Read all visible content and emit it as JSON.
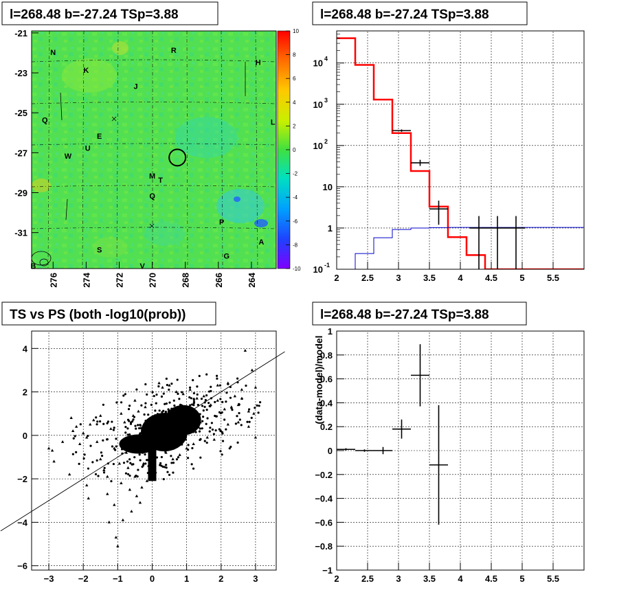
{
  "panels": {
    "skymap": {
      "title": "l=268.48 b=-27.24 TSp=3.88"
    },
    "spectrum": {
      "title": "l=268.48 b=-27.24 TSp=3.88"
    },
    "scatter": {
      "title": "TS vs PS (both -log10(prob))"
    },
    "residual": {
      "title": "l=268.48 b=-27.24 TSp=3.88"
    }
  },
  "chart_data": [
    {
      "type": "heatmap",
      "title": "l=268.48 b=-27.24 TSp=3.88",
      "x_ticks": [
        "276",
        "274",
        "272",
        "270",
        "268",
        "266",
        "264"
      ],
      "y_ticks": [
        "-21",
        "-23",
        "-25",
        "-27",
        "-29",
        "-31"
      ],
      "xlim": [
        277.3,
        262.5
      ],
      "ylim": [
        -32.8,
        -20.9
      ],
      "colorbar": {
        "ticks": [
          "10",
          "8",
          "6",
          "4",
          "2",
          "0",
          "-2",
          "-4",
          "-6",
          "-8",
          "-10"
        ],
        "range": [
          -10,
          10
        ]
      },
      "labels": [
        {
          "text": "N",
          "l": 276.0,
          "b": -22.1
        },
        {
          "text": "K",
          "l": 274.0,
          "b": -23.0
        },
        {
          "text": "R",
          "l": 268.7,
          "b": -22.0
        },
        {
          "text": "H",
          "l": 263.6,
          "b": -22.6
        },
        {
          "text": "J",
          "l": 271.0,
          "b": -23.8
        },
        {
          "text": "Q",
          "l": 276.5,
          "b": -25.5
        },
        {
          "text": "E",
          "l": 273.2,
          "b": -26.3
        },
        {
          "text": "L",
          "l": 262.7,
          "b": -25.6
        },
        {
          "text": "U",
          "l": 273.9,
          "b": -26.9
        },
        {
          "text": "W",
          "l": 275.1,
          "b": -27.3
        },
        {
          "text": "M",
          "l": 270.0,
          "b": -28.3
        },
        {
          "text": "T",
          "l": 269.5,
          "b": -28.5
        },
        {
          "text": "Q",
          "l": 270.0,
          "b": -29.3
        },
        {
          "text": "P",
          "l": 265.8,
          "b": -30.6
        },
        {
          "text": "A",
          "l": 263.4,
          "b": -31.6
        },
        {
          "text": "S",
          "l": 273.2,
          "b": -32.0
        },
        {
          "text": "G",
          "l": 265.5,
          "b": -32.3
        },
        {
          "text": "V",
          "l": 270.6,
          "b": -32.8
        },
        {
          "text": "B",
          "l": 277.2,
          "b": -32.8
        }
      ],
      "circle": {
        "l": 268.48,
        "b": -27.24
      }
    },
    {
      "type": "line",
      "title": "l=268.48 b=-27.24 TSp=3.88",
      "xlim": [
        2,
        6
      ],
      "ylim": [
        0.1,
        60000
      ],
      "yscale": "log",
      "x_ticks": [
        "2",
        "2.5",
        "3",
        "3.5",
        "4",
        "4.5",
        "5",
        "5.5"
      ],
      "y_ticks": [
        "10^-1",
        "1",
        "10",
        "10^2",
        "10^3",
        "10^4"
      ],
      "grid": true,
      "series": [
        {
          "style": "step",
          "color": "#ff0000",
          "edges": [
            2.0,
            2.3,
            2.6,
            2.9,
            3.2,
            3.5,
            3.8,
            4.1,
            4.4,
            6.0
          ],
          "values": [
            40000,
            9000,
            1300,
            200,
            24,
            3.3,
            0.6,
            0.22,
            0.1
          ]
        },
        {
          "style": "step",
          "color": "#0000cc",
          "edges": [
            2.0,
            2.3,
            2.6,
            2.9,
            3.2,
            3.5,
            3.8,
            6.0
          ],
          "values": [
            0.1,
            0.24,
            0.58,
            0.92,
            1.0,
            1.02,
            1.03
          ]
        },
        {
          "style": "errorbar",
          "color": "#000000",
          "points": [
            {
              "x": 3.05,
              "y": 230,
              "xerr": 0.15,
              "ylo": 215,
              "yhi": 245
            },
            {
              "x": 3.35,
              "y": 38,
              "xerr": 0.15,
              "ylo": 32,
              "yhi": 45
            },
            {
              "x": 3.65,
              "y": 2.9,
              "xerr": 0.15,
              "ylo": 1.2,
              "yhi": 4.6
            },
            {
              "x": 4.3,
              "y": 1.0,
              "xerr": 0.15,
              "ylo": 0.1,
              "yhi": 1.95
            },
            {
              "x": 4.6,
              "y": 1.0,
              "xerr": 0.15,
              "ylo": 0.1,
              "yhi": 1.95
            },
            {
              "x": 4.9,
              "y": 1.0,
              "xerr": 0.15,
              "ylo": 0.1,
              "yhi": 1.95
            }
          ]
        }
      ]
    },
    {
      "type": "scatter",
      "title": "TS vs PS (both -log10(prob))",
      "xlim": [
        -3.5,
        3.6
      ],
      "ylim": [
        -6.2,
        4.8
      ],
      "x_ticks": [
        "−3",
        "−2",
        "−1",
        "0",
        "1",
        "2",
        "3"
      ],
      "y_ticks": [
        "−6",
        "−4",
        "−2",
        "0",
        "2",
        "4"
      ],
      "grid": true,
      "reference_line": {
        "slope": 1,
        "intercept": 0
      },
      "points": [
        [
          -2.9,
          -0.7
        ],
        [
          -2.85,
          -1.2
        ],
        [
          -2.4,
          -1.8
        ],
        [
          -2.35,
          0.8
        ],
        [
          -2.3,
          0.2
        ],
        [
          -2.2,
          0.4
        ],
        [
          -2.0,
          0.1
        ],
        [
          -2.1,
          -0.4
        ],
        [
          -1.9,
          -2.3
        ],
        [
          -1.85,
          -2.9
        ],
        [
          -1.8,
          0.5
        ],
        [
          -1.7,
          0.7
        ],
        [
          -1.6,
          -0.3
        ],
        [
          -1.5,
          -1.1
        ],
        [
          -1.4,
          -1.6
        ],
        [
          -1.3,
          -1.9
        ],
        [
          -1.3,
          -2.7
        ],
        [
          -1.25,
          -4.0
        ],
        [
          -1.2,
          0.3
        ],
        [
          -1.1,
          -0.6
        ],
        [
          -1.1,
          -3.2
        ],
        [
          -1.05,
          -4.7
        ],
        [
          -1.0,
          -5.1
        ],
        [
          -0.95,
          -1.3
        ],
        [
          -0.9,
          -2.2
        ],
        [
          -0.85,
          -3.9
        ],
        [
          -0.8,
          0.6
        ],
        [
          -0.75,
          -0.8
        ],
        [
          -0.7,
          -1.5
        ],
        [
          -0.65,
          -2.5
        ],
        [
          -0.6,
          -3.5
        ],
        [
          -0.55,
          0.9
        ],
        [
          -0.5,
          -1.9
        ],
        [
          -0.45,
          -2.8
        ],
        [
          -0.4,
          1.1
        ],
        [
          -0.35,
          -3.1
        ],
        [
          -0.3,
          -2.4
        ],
        [
          -0.25,
          -1.3
        ],
        [
          -0.2,
          1.3
        ],
        [
          -0.15,
          -2.1
        ],
        [
          0.3,
          2.2
        ],
        [
          0.5,
          2.3
        ],
        [
          0.7,
          2.0
        ],
        [
          0.9,
          1.9
        ],
        [
          1.1,
          2.1
        ],
        [
          1.3,
          1.7
        ],
        [
          1.5,
          1.8
        ],
        [
          1.7,
          1.4
        ],
        [
          1.9,
          1.6
        ],
        [
          2.1,
          1.2
        ],
        [
          2.3,
          1.3
        ],
        [
          2.5,
          1.4
        ],
        [
          2.6,
          1.7
        ],
        [
          2.7,
          3.9
        ],
        [
          2.8,
          1.1
        ],
        [
          2.9,
          3.0
        ],
        [
          2.95,
          1.0
        ],
        [
          3.0,
          2.2
        ],
        [
          3.0,
          -0.1
        ],
        [
          2.8,
          0.4
        ],
        [
          2.5,
          0.6
        ],
        [
          2.2,
          0.5
        ],
        [
          2.0,
          0.2
        ],
        [
          1.8,
          -0.2
        ],
        [
          1.6,
          -0.1
        ],
        [
          1.4,
          0.6
        ],
        [
          1.2,
          -0.4
        ],
        [
          1.0,
          -0.6
        ],
        [
          0.8,
          -0.9
        ],
        [
          0.6,
          -1.1
        ],
        [
          0.4,
          -0.8
        ],
        [
          2.6,
          2.1
        ],
        [
          2.4,
          1.8
        ],
        [
          2.2,
          2.4
        ],
        [
          1.9,
          2.3
        ],
        [
          0.2,
          2.4
        ],
        [
          -0.1,
          -1.4
        ],
        [
          0.1,
          -1.7
        ],
        [
          -0.5,
          1.6
        ],
        [
          -0.9,
          1.0
        ],
        [
          -1.5,
          0.9
        ],
        [
          -1.9,
          -0.1
        ],
        [
          -2.6,
          -0.3
        ],
        [
          -3.0,
          -0.6
        ]
      ]
    },
    {
      "type": "line",
      "title": "l=268.48 b=-27.24 TSp=3.88",
      "ylabel": "(data-model)/model",
      "xlim": [
        2,
        6
      ],
      "ylim": [
        -1,
        1
      ],
      "x_ticks": [
        "2",
        "2.5",
        "3",
        "3.5",
        "4",
        "4.5",
        "5",
        "5.5"
      ],
      "y_ticks": [
        "1",
        "0.8",
        "0.6",
        "0.4",
        "0.2",
        "0",
        "−0.2",
        "−0.4",
        "−0.6",
        "−0.8",
        "−1"
      ],
      "grid": true,
      "series": [
        {
          "style": "errorbar",
          "color": "#000000",
          "points": [
            {
              "x": 2.15,
              "y": 0.01,
              "xerr": 0.15,
              "ylo": 0.0,
              "yhi": 0.02
            },
            {
              "x": 2.45,
              "y": 0.0,
              "xerr": 0.15,
              "ylo": -0.01,
              "yhi": 0.01
            },
            {
              "x": 2.75,
              "y": 0.0,
              "xerr": 0.15,
              "ylo": -0.03,
              "yhi": 0.03
            },
            {
              "x": 3.05,
              "y": 0.18,
              "xerr": 0.15,
              "ylo": 0.1,
              "yhi": 0.26
            },
            {
              "x": 3.35,
              "y": 0.63,
              "xerr": 0.15,
              "ylo": 0.37,
              "yhi": 0.89
            },
            {
              "x": 3.65,
              "y": -0.12,
              "xerr": 0.15,
              "ylo": -0.62,
              "yhi": 0.38
            }
          ]
        }
      ]
    }
  ]
}
